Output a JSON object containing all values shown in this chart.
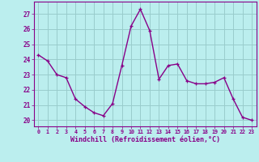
{
  "x": [
    0,
    1,
    2,
    3,
    4,
    5,
    6,
    7,
    8,
    9,
    10,
    11,
    12,
    13,
    14,
    15,
    16,
    17,
    18,
    19,
    20,
    21,
    22,
    23
  ],
  "y": [
    24.3,
    23.9,
    23.0,
    22.8,
    21.4,
    20.9,
    20.5,
    20.3,
    21.1,
    23.6,
    26.2,
    27.3,
    25.9,
    22.7,
    23.6,
    23.7,
    22.6,
    22.4,
    22.4,
    22.5,
    22.8,
    21.4,
    20.2,
    20.0
  ],
  "line_color": "#880088",
  "marker": "+",
  "bg_color": "#bbeeee",
  "grid_color": "#99cccc",
  "xlabel": "Windchill (Refroidissement éolien,°C)",
  "xlabel_color": "#880088",
  "ylabel_ticks": [
    20,
    21,
    22,
    23,
    24,
    25,
    26,
    27
  ],
  "xtick_labels": [
    "0",
    "1",
    "2",
    "3",
    "4",
    "5",
    "6",
    "7",
    "8",
    "9",
    "10",
    "11",
    "12",
    "13",
    "14",
    "15",
    "16",
    "17",
    "18",
    "19",
    "20",
    "21",
    "22",
    "23"
  ],
  "ylim": [
    19.6,
    27.8
  ],
  "xlim": [
    -0.5,
    23.5
  ],
  "tick_color": "#880088",
  "spine_color": "#880088",
  "line_width": 1.0,
  "marker_size": 3.5
}
